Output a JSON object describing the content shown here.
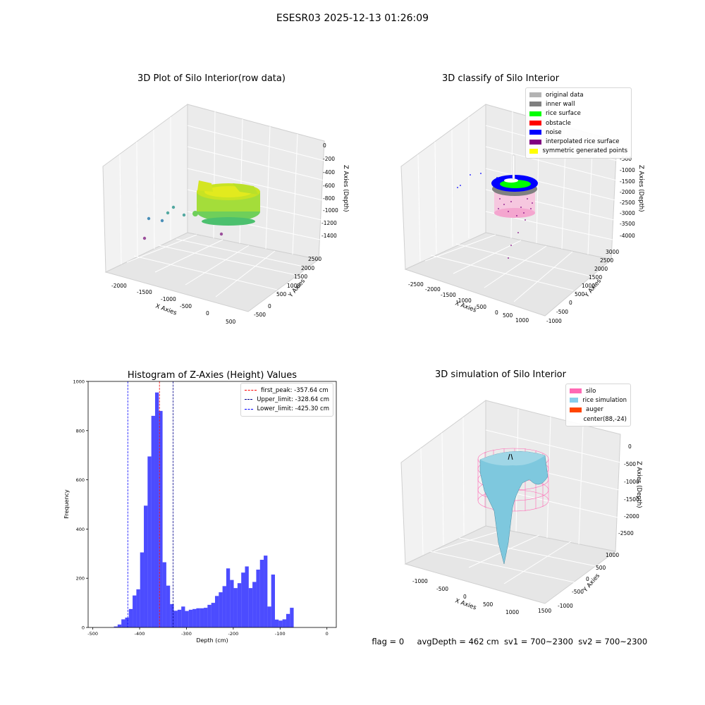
{
  "suptitle": "ESESR03 2025-12-13 01:26:09",
  "panel1": {
    "title": "3D Plot of Silo Interior(row data)",
    "xlabel": "X Axies",
    "ylabel": "Y Axies",
    "zlabel": "Z Axies (Depth)",
    "xticks": [
      "-2000",
      "-1500",
      "-1000",
      "-500",
      "0",
      "500"
    ],
    "yticks": [
      "-500",
      "0",
      "500",
      "1000",
      "1500",
      "2000",
      "2500"
    ],
    "zticks": [
      "0",
      "-200",
      "-400",
      "-600",
      "-800",
      "-1000",
      "-1200",
      "-1400"
    ]
  },
  "panel2": {
    "title": "3D classify of Silo Interior",
    "xlabel": "X Axies",
    "ylabel": "Y Axies",
    "zlabel": "Z Axies (Depth)",
    "xticks": [
      "-2500",
      "-2000",
      "-1500",
      "-1000",
      "-500",
      "0",
      "500",
      "1000"
    ],
    "yticks": [
      "-1000",
      "-500",
      "0",
      "500",
      "1000",
      "1500",
      "2000",
      "2500",
      "3000"
    ],
    "zticks": [
      "-500",
      "-1000",
      "-1500",
      "-2000",
      "-2500",
      "-3000",
      "-3500",
      "-4000"
    ],
    "legend": [
      {
        "label": "original data",
        "color": "#b3b3b3"
      },
      {
        "label": "inner wall",
        "color": "#808080"
      },
      {
        "label": "rice surface",
        "color": "#00ff00"
      },
      {
        "label": "obstacle",
        "color": "#ff0000"
      },
      {
        "label": "noise",
        "color": "#0000ff"
      },
      {
        "label": "interpolated rice surface",
        "color": "#800080"
      },
      {
        "label": "symmetric generated points",
        "color": "#ffff00"
      }
    ]
  },
  "panel3": {
    "title": "3D simulation of Silo Interior",
    "xlabel": "X Axies",
    "ylabel": "Y Axies",
    "zlabel": "Z Axies (Depth)",
    "xticks": [
      "-1000",
      "-500",
      "0",
      "500",
      "1000",
      "1500"
    ],
    "yticks": [
      "-1000",
      "-500",
      "0",
      "500",
      "1000"
    ],
    "zticks": [
      "0",
      "-500",
      "-1000",
      "-1500",
      "-2000",
      "-2500"
    ],
    "legend": [
      {
        "label": "silo",
        "color": "#ff69b4"
      },
      {
        "label": "rice simulation",
        "color": "#87ceeb"
      },
      {
        "label": "auger",
        "color": "#ff4500"
      },
      {
        "label": "center(88,-24)",
        "color": ""
      }
    ]
  },
  "status": {
    "flag": "flag = 0",
    "avg": "avgDepth = 462 cm",
    "sv1": "sv1 = 700~2300",
    "sv2": "sv2 = 700~2300"
  },
  "chart_data": [
    {
      "type": "histogram",
      "title": "Histogram of Z-Axies (Height) Values",
      "xlabel": "Depth (cm)",
      "ylabel": "Frequency",
      "xlim": [
        -510,
        20
      ],
      "ylim": [
        0,
        1000
      ],
      "xticks": [
        -500,
        -400,
        -300,
        -200,
        -100,
        0
      ],
      "yticks": [
        0,
        200,
        400,
        600,
        800,
        1000
      ],
      "bar_color": "#0000ff",
      "bin_start": -455,
      "bin_width": 8,
      "values": [
        4,
        12,
        33,
        40,
        75,
        130,
        155,
        305,
        495,
        695,
        860,
        955,
        880,
        265,
        170,
        95,
        68,
        72,
        85,
        67,
        72,
        75,
        78,
        78,
        80,
        92,
        100,
        128,
        143,
        168,
        240,
        193,
        160,
        180,
        223,
        248,
        160,
        185,
        235,
        275,
        292,
        85,
        215,
        32,
        28,
        33,
        55,
        80
      ],
      "lines": [
        {
          "label": "first_peak: -357.64 cm",
          "x": -357.64,
          "color": "#ff0000"
        },
        {
          "label": "Upper_limit: -328.64 cm",
          "x": -328.64,
          "color": "#00008b"
        },
        {
          "label": "Lower_limit: -425.30 cm",
          "x": -425.3,
          "color": "#0000ff"
        }
      ],
      "legend_position": "top-right"
    }
  ]
}
